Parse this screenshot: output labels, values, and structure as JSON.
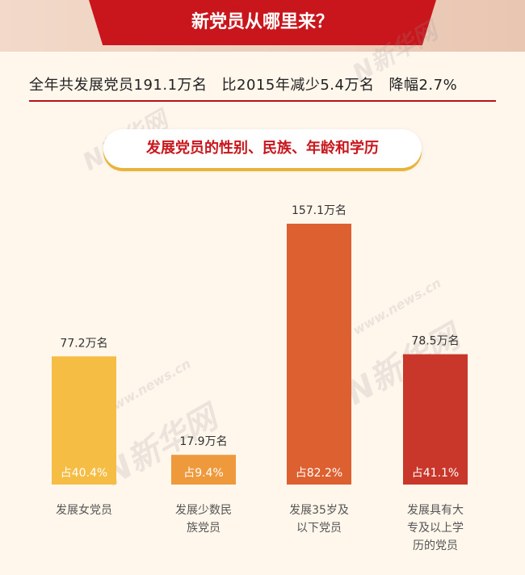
{
  "header": {
    "title": "新党员从哪里来？"
  },
  "summary": {
    "total": "全年共发展党员191.1万名",
    "compare": "比2015年减少5.4万名",
    "drop": "降幅2.7%"
  },
  "section": {
    "title": "发展党员的性别、民族、年龄和学历"
  },
  "watermarks": [
    "N新华网",
    "www.news.cn"
  ],
  "chart_data": {
    "type": "bar",
    "categories": [
      "发展女党员",
      "发展少数民族党员",
      "发展35岁及以下党员",
      "发展具有大专及以上学历的党员"
    ],
    "category_lines": [
      [
        "发展女党员"
      ],
      [
        "发展少数民",
        "族党员"
      ],
      [
        "发展35岁及",
        "以下党员"
      ],
      [
        "发展具有大",
        "专及以上学",
        "历的党员"
      ]
    ],
    "values": [
      77.2,
      17.9,
      157.1,
      78.5
    ],
    "value_labels": [
      "77.2万名",
      "17.9万名",
      "157.1万名",
      "78.5万名"
    ],
    "percent_labels": [
      "占40.4%",
      "占9.4%",
      "占82.2%",
      "占41.1%"
    ],
    "colors": [
      "#f6bd44",
      "#ee9a3c",
      "#dd6130",
      "#c9372a"
    ],
    "ylim": [
      0,
      157.1
    ]
  }
}
